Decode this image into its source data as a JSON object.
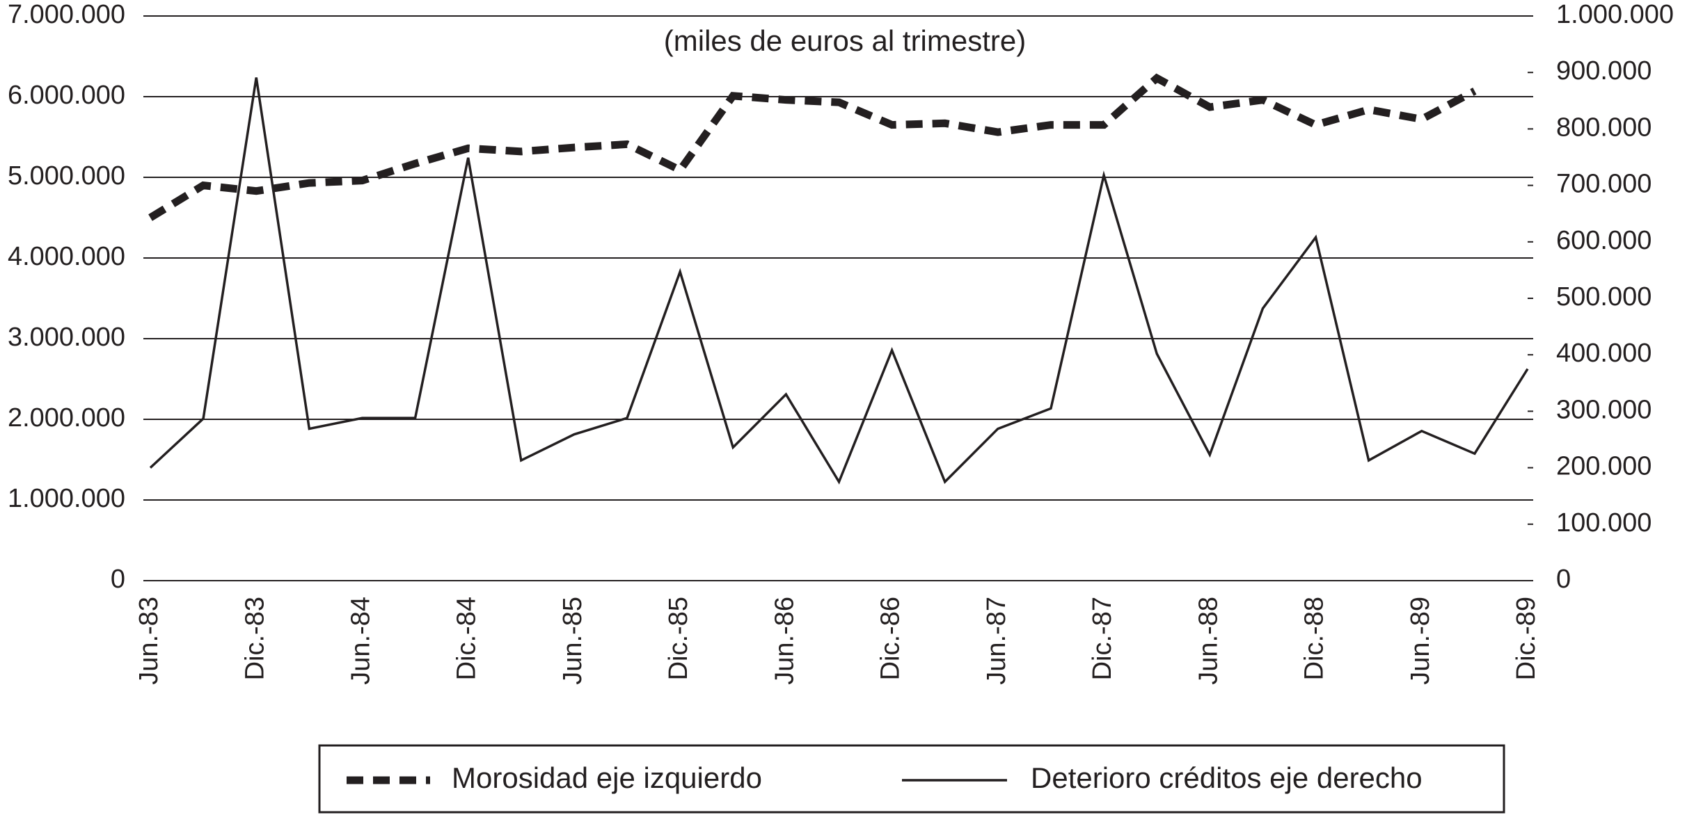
{
  "chart_data": {
    "type": "line",
    "subtitle": "(miles de euros al trimestre)",
    "categories": [
      "Jun.-83",
      null,
      "Dic.-83",
      null,
      "Jun.-84",
      null,
      "Dic.-84",
      null,
      "Jun.-85",
      null,
      "Dic.-85",
      null,
      "Jun.-86",
      null,
      "Dic.-86",
      null,
      "Jun.-87",
      null,
      "Dic.-87",
      null,
      "Jun.-88",
      null,
      "Dic.-88",
      null,
      "Jun.-89",
      null,
      "Dic.-89"
    ],
    "series": [
      {
        "name": "Morosidad eje izquierdo",
        "color": "#231f20",
        "line_style": "dashed",
        "axis": "y",
        "values": [
          4500000,
          4900000,
          4830000,
          4930000,
          4960000,
          5170000,
          5360000,
          5320000,
          5370000,
          5410000,
          5090000,
          6010000,
          5960000,
          5930000,
          5650000,
          5670000,
          5560000,
          5650000,
          5650000,
          6230000,
          5870000,
          5960000,
          5650000,
          5840000,
          5720000,
          6070000,
          null
        ]
      },
      {
        "name": "Deterioro créditos eje derecho",
        "color": "#231f20",
        "line_style": "solid",
        "axis": "y2",
        "values": [
          200000,
          287000,
          891000,
          269000,
          288000,
          288000,
          749000,
          213000,
          259000,
          288000,
          547000,
          236000,
          330000,
          175000,
          408000,
          175000,
          269000,
          305000,
          718000,
          402000,
          223000,
          482000,
          608000,
          213000,
          265000,
          225000,
          375000
        ]
      }
    ],
    "ylim": [
      0,
      7000000
    ],
    "yticks": [
      0,
      {
        "value": 1000000,
        "label": "1.000.000"
      },
      {
        "value": 2000000,
        "label": "2.000.000"
      },
      {
        "value": 3000000,
        "label": "3.000.000"
      },
      {
        "value": 4000000,
        "label": "4.000.000"
      },
      {
        "value": 5000000,
        "label": "5.000.000"
      },
      {
        "value": 6000000,
        "label": "6.000.000"
      },
      {
        "value": 7000000,
        "label": "7.000.000"
      }
    ],
    "y2lim": [
      0,
      1000000
    ],
    "y2ticks": [
      0,
      {
        "value": 100000,
        "label": "100.000"
      },
      {
        "value": 200000,
        "label": "200.000"
      },
      {
        "value": 300000,
        "label": "300.000"
      },
      {
        "value": 400000,
        "label": "400.000"
      },
      {
        "value": 500000,
        "label": "500.000"
      },
      {
        "value": 600000,
        "label": "600.000"
      },
      {
        "value": 700000,
        "label": "700.000"
      },
      {
        "value": 800000,
        "label": "800.000"
      },
      {
        "value": 900000,
        "label": "900.000"
      },
      {
        "value": 1000000,
        "label": "1.000.000"
      }
    ],
    "grid": true,
    "legend": "bottom"
  }
}
